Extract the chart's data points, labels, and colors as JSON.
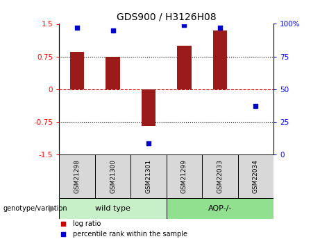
{
  "title": "GDS900 / H3126H08",
  "samples": [
    "GSM21298",
    "GSM21300",
    "GSM21301",
    "GSM21299",
    "GSM22033",
    "GSM22034"
  ],
  "log_ratio": [
    0.85,
    0.75,
    -0.85,
    1.0,
    1.35,
    0.0
  ],
  "percentile": [
    97,
    95,
    8,
    99,
    97,
    37
  ],
  "bar_color": "#9b1a1a",
  "dot_color": "#0000cd",
  "ylim_left": [
    -1.5,
    1.5
  ],
  "ylim_right": [
    0,
    100
  ],
  "yticks_left": [
    -1.5,
    -0.75,
    0,
    0.75,
    1.5
  ],
  "yticks_right": [
    0,
    25,
    50,
    75,
    100
  ],
  "ytick_labels_right": [
    "0",
    "25",
    "50",
    "75",
    "100%"
  ],
  "groups": [
    {
      "label": "wild type",
      "start": 0,
      "end": 3,
      "color": "#c8f0c8"
    },
    {
      "label": "AQP-/-",
      "start": 3,
      "end": 6,
      "color": "#90e090"
    }
  ],
  "group_label_prefix": "genotype/variation",
  "legend_items": [
    {
      "label": "log ratio",
      "color": "#cc0000"
    },
    {
      "label": "percentile rank within the sample",
      "color": "#0000cc"
    }
  ],
  "hlines": [
    0.75,
    0.0,
    -0.75
  ],
  "hline_colors": [
    "black",
    "#cc0000",
    "black"
  ],
  "hline_styles": [
    "dotted",
    "dashed",
    "dotted"
  ],
  "background_color": "#ffffff"
}
